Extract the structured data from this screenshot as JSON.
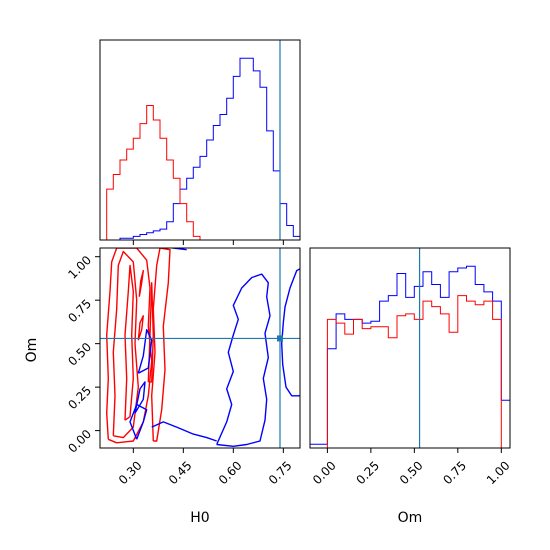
{
  "chart_data": {
    "type": "corner",
    "parameters": [
      "H0",
      "Om"
    ],
    "truth": {
      "H0": 0.74,
      "Om": 0.53
    },
    "colors": {
      "series_a": "#0000ff",
      "series_b": "#ff0000",
      "truth": "#1f77b4",
      "frame": "#000000"
    },
    "axes": {
      "H0": {
        "label": "H0",
        "range": [
          0.2,
          0.8
        ],
        "ticks": [
          0.3,
          0.45,
          0.6,
          0.75
        ],
        "tick_labels": [
          "0.30",
          "0.45",
          "0.60",
          "0.75"
        ],
        "tick_rotation": -45
      },
      "Om": {
        "label": "Om",
        "range": [
          -0.1,
          1.05
        ],
        "ticks": [
          0.0,
          0.25,
          0.5,
          0.75,
          1.0
        ],
        "tick_labels": [
          "0.00",
          "0.25",
          "0.50",
          "0.75",
          "1.00"
        ],
        "tick_rotation": -45
      }
    },
    "hist_H0": {
      "bin_edges": [
        0.2,
        0.22,
        0.24,
        0.26,
        0.28,
        0.3,
        0.32,
        0.34,
        0.36,
        0.38,
        0.4,
        0.42,
        0.44,
        0.46,
        0.48,
        0.5,
        0.52,
        0.54,
        0.56,
        0.58,
        0.6,
        0.62,
        0.64,
        0.66,
        0.68,
        0.7,
        0.72,
        0.74,
        0.76,
        0.78,
        0.8
      ],
      "series": [
        {
          "color_key": "series_a",
          "values": [
            0,
            0,
            0,
            0.01,
            0.01,
            0.02,
            0.03,
            0.04,
            0.05,
            0.06,
            0.1,
            0.2,
            0.28,
            0.34,
            0.4,
            0.46,
            0.55,
            0.63,
            0.69,
            0.78,
            0.9,
            1.0,
            1.0,
            0.93,
            0.84,
            0.6,
            0.38,
            0.2,
            0.08,
            0.02
          ]
        },
        {
          "color_key": "series_b",
          "values": [
            0,
            0.28,
            0.36,
            0.44,
            0.5,
            0.56,
            0.64,
            0.74,
            0.66,
            0.56,
            0.44,
            0.34,
            0.2,
            0.1,
            0.02,
            0,
            0,
            0,
            0,
            0,
            0,
            0,
            0,
            0,
            0,
            0,
            0,
            0,
            0,
            0
          ]
        }
      ]
    },
    "hist_Om": {
      "bin_edges": [
        -0.1,
        0.0,
        0.05,
        0.1,
        0.15,
        0.2,
        0.25,
        0.3,
        0.35,
        0.4,
        0.45,
        0.5,
        0.55,
        0.6,
        0.65,
        0.7,
        0.75,
        0.8,
        0.85,
        0.9,
        0.95,
        1.0,
        1.05
      ],
      "series": [
        {
          "color_key": "series_a",
          "values": [
            0.02,
            0.54,
            0.73,
            0.7,
            0.7,
            0.68,
            0.69,
            0.8,
            0.83,
            0.95,
            0.82,
            0.88,
            0.96,
            0.89,
            0.82,
            0.96,
            0.98,
            0.99,
            0.89,
            0.85,
            0.8,
            0.26
          ]
        },
        {
          "color_key": "series_b",
          "values": [
            0,
            0.7,
            0.68,
            0.62,
            0.7,
            0.65,
            0.66,
            0.66,
            0.6,
            0.72,
            0.73,
            0.7,
            0.8,
            0.77,
            0.73,
            0.63,
            0.83,
            0.8,
            0.78,
            0.8,
            0.7,
            0
          ]
        }
      ]
    },
    "contours_2d": [
      {
        "color_key": "series_b",
        "paths": [
          [
            [
              0.225,
              -0.05
            ],
            [
              0.22,
              0.1
            ],
            [
              0.225,
              0.3
            ],
            [
              0.22,
              0.55
            ],
            [
              0.23,
              0.8
            ],
            [
              0.235,
              0.97
            ],
            [
              0.25,
              1.05
            ],
            [
              0.31,
              1.05
            ],
            [
              0.34,
              0.98
            ],
            [
              0.35,
              0.82
            ],
            [
              0.345,
              0.6
            ],
            [
              0.355,
              0.4
            ],
            [
              0.345,
              0.2
            ],
            [
              0.33,
              0.05
            ],
            [
              0.3,
              -0.06
            ],
            [
              0.25,
              -0.07
            ],
            [
              0.225,
              -0.05
            ]
          ],
          [
            [
              0.24,
              -0.03
            ],
            [
              0.245,
              0.2
            ],
            [
              0.24,
              0.45
            ],
            [
              0.25,
              0.7
            ],
            [
              0.255,
              0.95
            ],
            [
              0.27,
              1.03
            ],
            [
              0.3,
              0.97
            ],
            [
              0.31,
              0.75
            ],
            [
              0.305,
              0.5
            ],
            [
              0.315,
              0.25
            ],
            [
              0.3,
              0.02
            ],
            [
              0.27,
              -0.04
            ],
            [
              0.24,
              -0.03
            ]
          ],
          [
            [
              0.275,
              0.06
            ],
            [
              0.28,
              0.3
            ],
            [
              0.275,
              0.55
            ],
            [
              0.285,
              0.8
            ],
            [
              0.29,
              0.95
            ],
            [
              0.3,
              0.8
            ],
            [
              0.295,
              0.55
            ],
            [
              0.3,
              0.3
            ],
            [
              0.29,
              0.08
            ],
            [
              0.275,
              0.06
            ]
          ],
          [
            [
              0.36,
              -0.06
            ],
            [
              0.355,
              0.2
            ],
            [
              0.365,
              0.45
            ],
            [
              0.36,
              0.7
            ],
            [
              0.37,
              0.95
            ],
            [
              0.38,
              1.05
            ],
            [
              0.41,
              1.04
            ],
            [
              0.405,
              0.85
            ],
            [
              0.39,
              0.6
            ],
            [
              0.395,
              0.35
            ],
            [
              0.385,
              0.12
            ],
            [
              0.37,
              -0.06
            ],
            [
              0.36,
              -0.06
            ]
          ],
          [
            [
              0.345,
              0.28
            ],
            [
              0.35,
              0.55
            ],
            [
              0.355,
              0.85
            ],
            [
              0.36,
              0.55
            ],
            [
              0.355,
              0.28
            ],
            [
              0.345,
              0.28
            ]
          ],
          [
            [
              0.315,
              0.52
            ],
            [
              0.325,
              0.58
            ],
            [
              0.33,
              0.66
            ],
            [
              0.32,
              0.62
            ],
            [
              0.315,
              0.52
            ]
          ],
          [
            [
              0.318,
              0.77
            ],
            [
              0.325,
              0.85
            ],
            [
              0.33,
              0.92
            ],
            [
              0.322,
              0.86
            ],
            [
              0.318,
              0.77
            ]
          ]
        ]
      },
      {
        "color_key": "series_a",
        "paths": [
          [
            [
              0.55,
              -0.08
            ],
            [
              0.58,
              0.05
            ],
            [
              0.595,
              0.15
            ],
            [
              0.58,
              0.24
            ],
            [
              0.6,
              0.34
            ],
            [
              0.585,
              0.45
            ],
            [
              0.6,
              0.55
            ],
            [
              0.615,
              0.64
            ],
            [
              0.6,
              0.72
            ],
            [
              0.625,
              0.82
            ],
            [
              0.655,
              0.88
            ],
            [
              0.685,
              0.9
            ],
            [
              0.705,
              0.85
            ],
            [
              0.7,
              0.77
            ],
            [
              0.71,
              0.66
            ],
            [
              0.695,
              0.56
            ],
            [
              0.705,
              0.42
            ],
            [
              0.69,
              0.3
            ],
            [
              0.7,
              0.18
            ],
            [
              0.695,
              0.06
            ],
            [
              0.68,
              -0.06
            ],
            [
              0.64,
              -0.08
            ],
            [
              0.6,
              -0.09
            ],
            [
              0.55,
              -0.08
            ]
          ],
          [
            [
              0.8,
              0.93
            ],
            [
              0.79,
              0.92
            ],
            [
              0.77,
              0.82
            ],
            [
              0.755,
              0.71
            ],
            [
              0.75,
              0.62
            ],
            [
              0.745,
              0.5
            ],
            [
              0.748,
              0.38
            ],
            [
              0.758,
              0.25
            ],
            [
              0.775,
              0.2
            ],
            [
              0.8,
              0.2
            ]
          ],
          [
            [
              0.31,
              -0.05
            ],
            [
              0.33,
              0.05
            ],
            [
              0.34,
              0.12
            ],
            [
              0.31,
              0.15
            ],
            [
              0.29,
              0.05
            ],
            [
              0.31,
              -0.05
            ]
          ],
          [
            [
              0.315,
              0.33
            ],
            [
              0.33,
              0.43
            ],
            [
              0.34,
              0.58
            ],
            [
              0.355,
              0.52
            ],
            [
              0.345,
              0.36
            ],
            [
              0.315,
              0.33
            ]
          ],
          [
            [
              0.305,
              0.1
            ],
            [
              0.33,
              0.18
            ],
            [
              0.335,
              0.28
            ],
            [
              0.32,
              0.24
            ],
            [
              0.305,
              0.1
            ]
          ],
          [
            [
              0.355,
              0.02
            ],
            [
              0.39,
              0.05
            ],
            [
              0.43,
              0.02
            ],
            [
              0.48,
              -0.02
            ],
            [
              0.52,
              -0.04
            ],
            [
              0.55,
              -0.06
            ]
          ],
          [
            [
              0.38,
              1.06
            ],
            [
              0.42,
              1.05
            ],
            [
              0.46,
              1.04
            ]
          ]
        ]
      }
    ]
  }
}
